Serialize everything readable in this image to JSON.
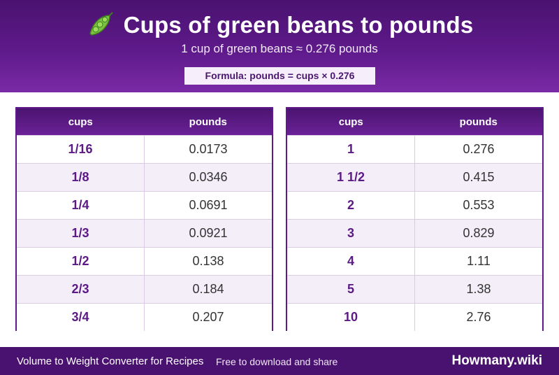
{
  "header": {
    "title": "Cups of green beans to pounds",
    "icon": "peas-icon",
    "subtitle": "1 cup of green beans ≈ 0.276 pounds",
    "formula": "Formula: pounds = cups × 0.276"
  },
  "tables": [
    {
      "col_cups": "cups",
      "col_pounds": "pounds",
      "rows": [
        {
          "cups": "1/16",
          "pounds": "0.0173"
        },
        {
          "cups": "1/8",
          "pounds": "0.0346"
        },
        {
          "cups": "1/4",
          "pounds": "0.0691"
        },
        {
          "cups": "1/3",
          "pounds": "0.0921"
        },
        {
          "cups": "1/2",
          "pounds": "0.138"
        },
        {
          "cups": "2/3",
          "pounds": "0.184"
        },
        {
          "cups": "3/4",
          "pounds": "0.207"
        }
      ]
    },
    {
      "col_cups": "cups",
      "col_pounds": "pounds",
      "rows": [
        {
          "cups": "1",
          "pounds": "0.276"
        },
        {
          "cups": "1 1/2",
          "pounds": "0.415"
        },
        {
          "cups": "2",
          "pounds": "0.553"
        },
        {
          "cups": "3",
          "pounds": "0.829"
        },
        {
          "cups": "4",
          "pounds": "1.11"
        },
        {
          "cups": "5",
          "pounds": "1.38"
        },
        {
          "cups": "10",
          "pounds": "2.76"
        }
      ]
    }
  ],
  "footer": {
    "left_text": "Volume to Weight Converter for Recipes",
    "middle_text": "Free to download and share",
    "brand": "Howmany.wiki"
  },
  "colors": {
    "primary": "#5e1a8a",
    "dark": "#4a1270",
    "row_alt": "#f4eef9"
  }
}
